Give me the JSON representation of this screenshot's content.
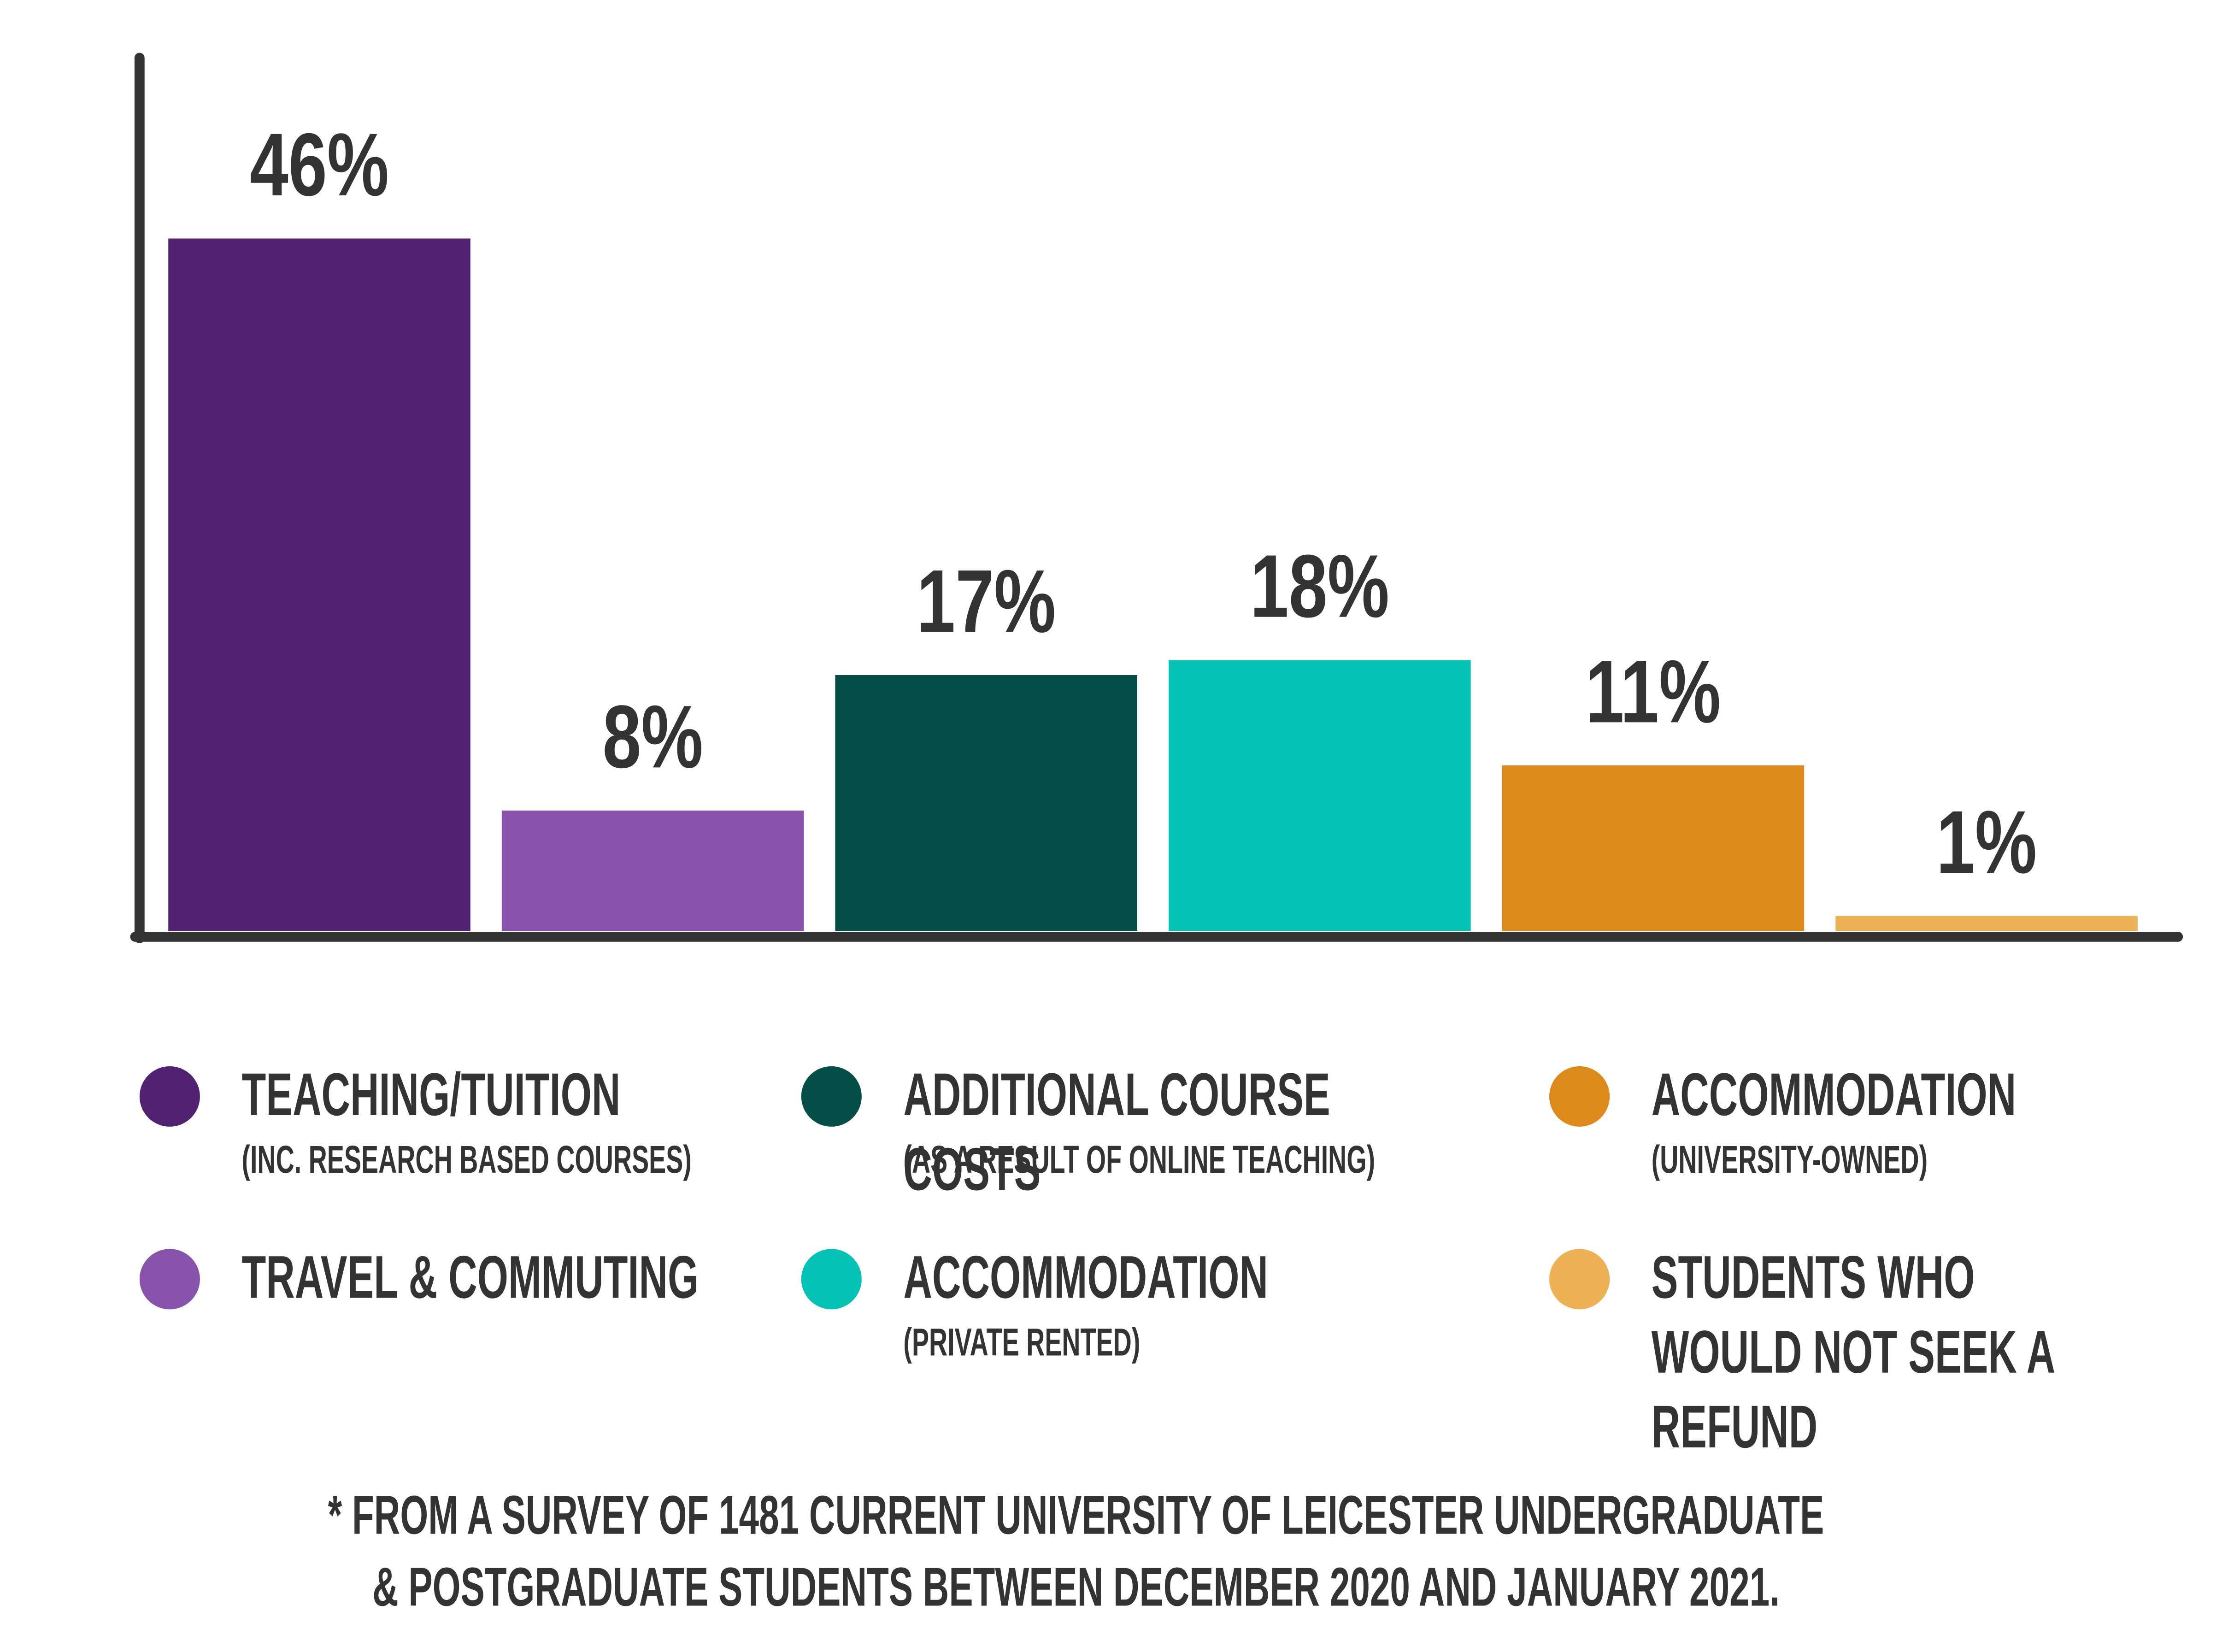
{
  "chart_data": {
    "type": "bar",
    "categories": [
      "TEACHING/TUITION",
      "TRAVEL & COMMUTING",
      "ADDITIONAL COURSE COSTS",
      "ACCOMMODATION",
      "ACCOMMODATION",
      "STUDENTS WHO WOULD NOT SEEK A REFUND"
    ],
    "category_notes": [
      "(INC. RESEARCH BASED COURSES)",
      null,
      "(AS A RESULT OF ONLINE TEACHING)",
      "(PRIVATE RENTED)",
      "(UNIVERSITY-OWNED)",
      null
    ],
    "values": [
      46,
      8,
      17,
      18,
      11,
      1
    ],
    "value_labels": [
      "46%",
      "8%",
      "17%",
      "18%",
      "11%",
      "1%"
    ],
    "colors": [
      "#512272",
      "#8853aa",
      "#044e47",
      "#06c2b4",
      "#db8a1b",
      "#edb255"
    ],
    "ylim": [
      0,
      58
    ],
    "footnote": [
      "* FROM A SURVEY OF 1481 CURRENT UNIVERSITY OF LEICESTER UNDERGRADUATE",
      "& POSTGRADUATE STUDENTS BETWEEN DECEMBER 2020 AND JANUARY 2021."
    ]
  }
}
